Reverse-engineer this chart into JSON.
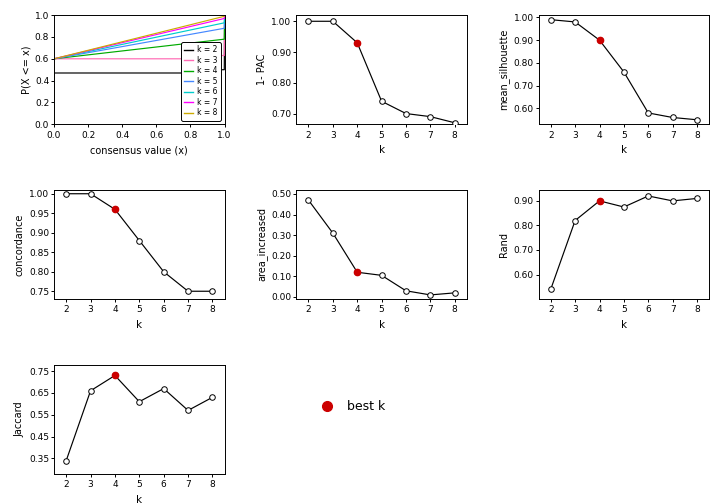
{
  "k_values": [
    2,
    3,
    4,
    5,
    6,
    7,
    8
  ],
  "best_k": 4,
  "pac_1minus": [
    1.0,
    1.0,
    0.93,
    0.74,
    0.7,
    0.69,
    0.67
  ],
  "mean_silhouette": [
    0.99,
    0.98,
    0.9,
    0.76,
    0.58,
    0.56,
    0.55
  ],
  "concordance": [
    1.0,
    1.0,
    0.96,
    0.88,
    0.8,
    0.75,
    0.75
  ],
  "area_increased": [
    0.47,
    0.31,
    0.12,
    0.105,
    0.03,
    0.01,
    0.02
  ],
  "rand": [
    0.54,
    0.82,
    0.9,
    0.875,
    0.92,
    0.9,
    0.91
  ],
  "jaccard": [
    0.34,
    0.66,
    0.73,
    0.61,
    0.67,
    0.57,
    0.63
  ],
  "colors_ecdf": [
    "#000000",
    "#FF69B4",
    "#00AA00",
    "#4488FF",
    "#00CCCC",
    "#FF00FF",
    "#CCAA00"
  ],
  "k_labels": [
    "k = 2",
    "k = 3",
    "k = 4",
    "k = 5",
    "k = 6",
    "k = 7",
    "k = 8"
  ],
  "background_color": "#FFFFFF",
  "best_k_color": "#CC0000"
}
